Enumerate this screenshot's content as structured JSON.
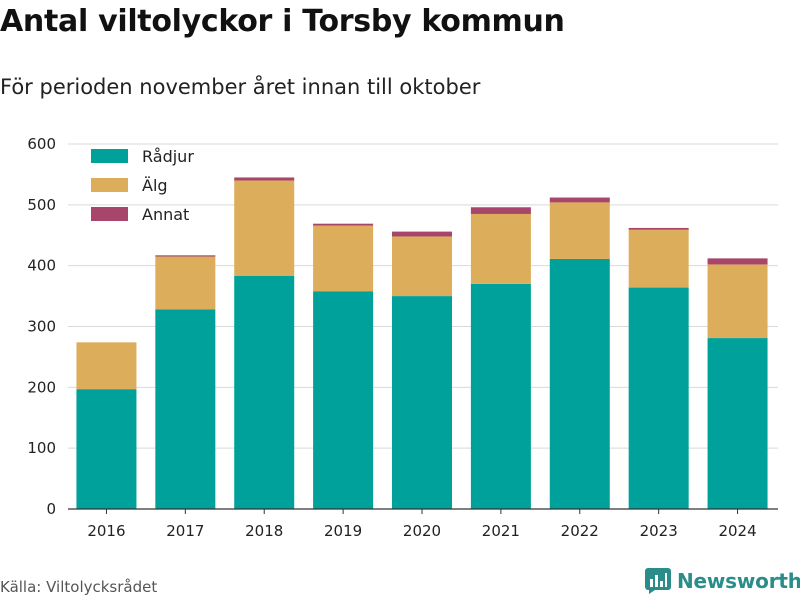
{
  "title": "Antal viltolyckor i Torsby kommun",
  "subtitle": "För perioden november året innan till oktober",
  "source": "Källa: Viltolycksrådet",
  "brand": {
    "name": "Newsworthy",
    "icon": "bar-chart-logo-icon"
  },
  "colors": {
    "radjur": "#00a19a",
    "alg": "#dcae5b",
    "annat": "#a8456b",
    "grid": "#d9d9d9",
    "brand": "#2a8d8a"
  },
  "chart_data": {
    "type": "bar",
    "stacked": true,
    "categories": [
      "2016",
      "2017",
      "2018",
      "2019",
      "2020",
      "2021",
      "2022",
      "2023",
      "2024"
    ],
    "series": [
      {
        "name": "Rådjur",
        "values": [
          197,
          328,
          383,
          358,
          350,
          370,
          411,
          364,
          281
        ]
      },
      {
        "name": "Älg",
        "values": [
          77,
          87,
          157,
          108,
          98,
          115,
          93,
          95,
          121
        ]
      },
      {
        "name": "Annat",
        "values": [
          0,
          2,
          5,
          3,
          8,
          11,
          8,
          3,
          10
        ]
      }
    ],
    "yticks": [
      "0",
      "100",
      "200",
      "300",
      "400",
      "500",
      "600"
    ],
    "ylim": [
      0,
      600
    ],
    "grid": true,
    "legend": "top-left"
  }
}
